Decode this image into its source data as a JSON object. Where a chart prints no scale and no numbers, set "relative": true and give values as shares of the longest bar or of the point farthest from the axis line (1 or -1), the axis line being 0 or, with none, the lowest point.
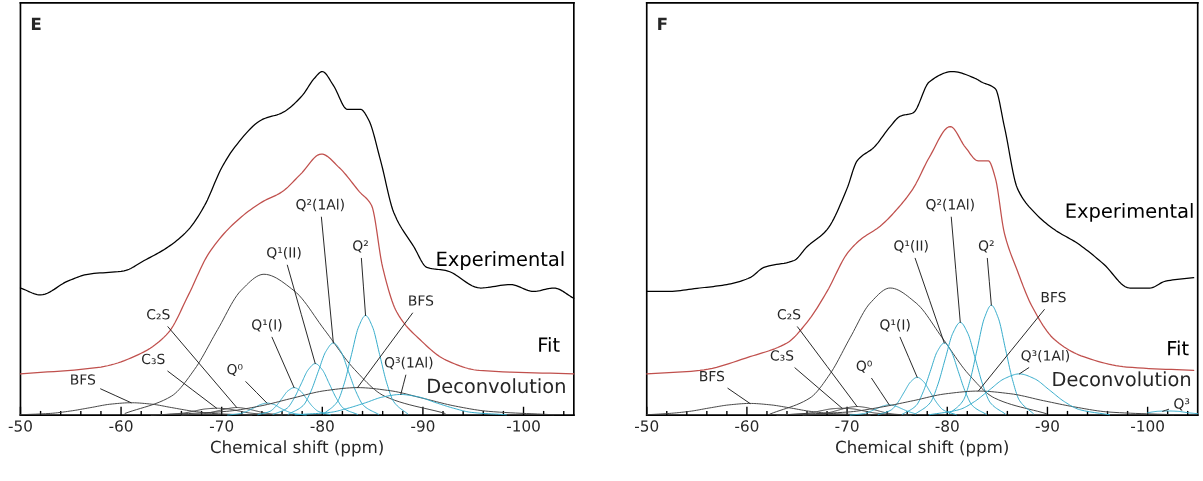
{
  "chart_data": [
    {
      "type": "line",
      "title": "E",
      "xlabel": "Chemical shift (ppm)",
      "relative": true,
      "xlim": [
        -50,
        -105
      ],
      "xticks": [
        -50,
        {
          "value": -52,
          "label": null
        },
        {
          "value": -54,
          "label": null
        },
        {
          "value": -56,
          "label": null
        },
        {
          "value": -58,
          "label": null
        },
        -60,
        {
          "value": -62,
          "label": null
        },
        {
          "value": -64,
          "label": null
        },
        {
          "value": -66,
          "label": null
        },
        {
          "value": -68,
          "label": null
        },
        -70,
        {
          "value": -72,
          "label": null
        },
        {
          "value": -74,
          "label": null
        },
        {
          "value": -76,
          "label": null
        },
        {
          "value": -78,
          "label": null
        },
        -80,
        {
          "value": -82,
          "label": null
        },
        {
          "value": -84,
          "label": null
        },
        {
          "value": -86,
          "label": null
        },
        {
          "value": -88,
          "label": null
        },
        -90,
        {
          "value": -92,
          "label": null
        },
        {
          "value": -94,
          "label": null
        },
        {
          "value": -96,
          "label": null
        },
        {
          "value": -98,
          "label": null
        },
        -100,
        {
          "value": -102,
          "label": null
        },
        {
          "value": -104,
          "label": null
        }
      ],
      "series": [
        {
          "name": "Experimental",
          "color": "#000000",
          "x": [
            -50,
            -52,
            -54.7,
            -56.7,
            -60.3,
            -62.3,
            -64.7,
            -66.7,
            -68.3,
            -70,
            -71.3,
            -74,
            -76,
            -78,
            -79.2,
            -80,
            -81.1,
            -82.5,
            -83.8,
            -84.6,
            -85.8,
            -87.1,
            -89.1,
            -90.4,
            -92.4,
            -95.7,
            -98.7,
            -101,
            -103,
            -105
          ],
          "values": [
            0.37,
            0.35,
            0.39,
            0.41,
            0.42,
            0.45,
            0.49,
            0.54,
            0.61,
            0.72,
            0.78,
            0.86,
            0.88,
            0.93,
            0.98,
            1.0,
            0.96,
            0.89,
            0.89,
            0.86,
            0.74,
            0.59,
            0.49,
            0.43,
            0.42,
            0.37,
            0.38,
            0.36,
            0.37,
            0.34
          ]
        },
        {
          "name": "Fit",
          "color": "#c0504d",
          "x": [
            -50,
            -58,
            -62,
            -64.7,
            -66.7,
            -68.7,
            -71.3,
            -74,
            -76,
            -77.8,
            -79.9,
            -81.7,
            -83.7,
            -84.9,
            -86,
            -87.4,
            -89.7,
            -92.3,
            -95.6,
            -105
          ],
          "values": [
            0.12,
            0.14,
            0.18,
            0.24,
            0.35,
            0.47,
            0.56,
            0.62,
            0.65,
            0.7,
            0.76,
            0.72,
            0.65,
            0.61,
            0.43,
            0.3,
            0.22,
            0.16,
            0.13,
            0.12
          ]
        },
        {
          "color": "#404040",
          "x": [
            -50,
            -53,
            -55,
            -57,
            -59,
            -61,
            -63,
            -65,
            -67,
            -69,
            -73
          ],
          "values": [
            0.001,
            0.005,
            0.012,
            0.022,
            0.032,
            0.036,
            0.032,
            0.022,
            0.012,
            0.005,
            0.0
          ]
        },
        {
          "color": "#404040",
          "x": [
            -63,
            -65,
            -66.2,
            -67.3,
            -68.4,
            -69.5,
            -70.6,
            -71.7,
            -72.8,
            -74,
            -76
          ],
          "values": [
            0.0,
            0.003,
            0.006,
            0.012,
            0.018,
            0.02,
            0.018,
            0.012,
            0.006,
            0.003,
            0.0
          ]
        },
        {
          "color": "#404040",
          "x": [
            -66,
            -67.9,
            -68.8,
            -69.7,
            -70.6,
            -71.5,
            -72.4,
            -73.3,
            -74.2,
            -75.1,
            -77
          ],
          "values": [
            0.0,
            0.003,
            0.007,
            0.013,
            0.019,
            0.022,
            0.019,
            0.013,
            0.007,
            0.003,
            0.0
          ]
        },
        {
          "color": "#404040",
          "x": [
            -60.4,
            -65,
            -67.3,
            -69.6,
            -71.9,
            -74.2,
            -77.2,
            -80.2,
            -83.2,
            -86.2,
            -92.2
          ],
          "values": [
            0.005,
            0.055,
            0.133,
            0.249,
            0.362,
            0.41,
            0.362,
            0.249,
            0.133,
            0.055,
            0.005
          ]
        },
        {
          "color": "#31a9c9",
          "x": [
            -70.6,
            -71.9,
            -72.5,
            -73.2,
            -73.9,
            -74.5,
            -75.2,
            -75.8,
            -76.5,
            -77.1,
            -78.4
          ],
          "values": [
            0.0,
            0.005,
            0.011,
            0.021,
            0.031,
            0.035,
            0.031,
            0.021,
            0.011,
            0.005,
            0.0
          ]
        },
        {
          "color": "#31a9c9",
          "x": [
            -73.6,
            -74.8,
            -75.4,
            -76,
            -76.6,
            -77.2,
            -77.8,
            -78.4,
            -79,
            -79.6,
            -80.8
          ],
          "values": [
            0.001,
            0.011,
            0.026,
            0.049,
            0.071,
            0.08,
            0.071,
            0.049,
            0.026,
            0.011,
            0.001
          ]
        },
        {
          "color": "#31a9c9",
          "x": [
            -75.1,
            -76.5,
            -77.2,
            -77.9,
            -78.6,
            -79.3,
            -80,
            -80.7,
            -81.4,
            -82.1,
            -83.5
          ],
          "values": [
            0.002,
            0.02,
            0.049,
            0.091,
            0.132,
            0.15,
            0.132,
            0.091,
            0.049,
            0.02,
            0.002
          ]
        },
        {
          "color": "#31a9c9",
          "x": [
            -76.6,
            -78.1,
            -78.85,
            -79.6,
            -80.35,
            -81.1,
            -81.85,
            -82.6,
            -83.35,
            -84.1,
            -85.6
          ],
          "values": [
            0.002,
            0.028,
            0.068,
            0.127,
            0.185,
            0.21,
            0.185,
            0.127,
            0.068,
            0.028,
            0.002
          ]
        },
        {
          "color": "#31a9c9",
          "x": [
            -80.1,
            -81.5,
            -82.2,
            -82.9,
            -83.6,
            -84.3,
            -85,
            -85.7,
            -86.4,
            -87.1,
            -88.5
          ],
          "values": [
            0.003,
            0.039,
            0.094,
            0.176,
            0.256,
            0.29,
            0.256,
            0.176,
            0.094,
            0.039,
            0.003
          ]
        },
        {
          "color": "#404040",
          "x": [
            -64,
            -70.5,
            -73.75,
            -77,
            -80.25,
            -83.5,
            -86.75,
            -90,
            -93.25,
            -96.5,
            -103
          ],
          "values": [
            0.001,
            0.011,
            0.026,
            0.049,
            0.071,
            0.08,
            0.071,
            0.049,
            0.026,
            0.011,
            0.001
          ]
        },
        {
          "color": "#31a9c9",
          "x": [
            -77.3,
            -80.8,
            -82.55,
            -84.3,
            -86.05,
            -87.8,
            -89.55,
            -91.3,
            -93.05,
            -94.8,
            -98.3
          ],
          "values": [
            0.001,
            0.008,
            0.02,
            0.036,
            0.053,
            0.06,
            0.053,
            0.036,
            0.02,
            0.008,
            0.001
          ]
        }
      ],
      "annotations": [
        {
          "text": "BFS",
          "x": -61,
          "y": 0.036
        },
        {
          "text": "C₃S",
          "x": -69.5,
          "y": 0.02
        },
        {
          "text": "C₂S",
          "x": -71.5,
          "y": 0.022
        },
        {
          "text": "Q⁰",
          "x": -74.5,
          "y": 0.035
        },
        {
          "text": "Q¹(I)",
          "x": -77.2,
          "y": 0.08
        },
        {
          "text": "Q¹(II)",
          "x": -79.3,
          "y": 0.15
        },
        {
          "text": "Q²(1Al)",
          "x": -81.1,
          "y": 0.21
        },
        {
          "text": "Q²",
          "x": -84.3,
          "y": 0.29
        },
        {
          "text": "BFS",
          "x": -83.5,
          "y": 0.08
        },
        {
          "text": "Q³(1Al)",
          "x": -87.8,
          "y": 0.06
        },
        "Deconvolution"
      ]
    },
    {
      "type": "line",
      "title": "F",
      "xlabel": "Chemical shift (ppm)",
      "relative": true,
      "xlim": [
        -50,
        -105
      ],
      "xticks": [
        -50,
        {
          "value": -52,
          "label": null
        },
        {
          "value": -54,
          "label": null
        },
        {
          "value": -56,
          "label": null
        },
        {
          "value": -58,
          "label": null
        },
        -60,
        {
          "value": -62,
          "label": null
        },
        {
          "value": -64,
          "label": null
        },
        {
          "value": -66,
          "label": null
        },
        {
          "value": -68,
          "label": null
        },
        -70,
        {
          "value": -72,
          "label": null
        },
        {
          "value": -74,
          "label": null
        },
        {
          "value": -76,
          "label": null
        },
        {
          "value": -78,
          "label": null
        },
        -80,
        {
          "value": -82,
          "label": null
        },
        {
          "value": -84,
          "label": null
        },
        {
          "value": -86,
          "label": null
        },
        {
          "value": -88,
          "label": null
        },
        -90,
        {
          "value": -92,
          "label": null
        },
        {
          "value": -94,
          "label": null
        },
        {
          "value": -96,
          "label": null
        },
        {
          "value": -98,
          "label": null
        },
        -100,
        {
          "value": -102,
          "label": null
        },
        {
          "value": -104,
          "label": null
        }
      ],
      "series": [
        {
          "name": "Experimental",
          "color": "#000000",
          "x": [
            -50,
            -52,
            -55.3,
            -58,
            -60.3,
            -61.7,
            -64.7,
            -66,
            -68,
            -70,
            -71,
            -72.7,
            -74.3,
            -75.3,
            -76.6,
            -78.2,
            -80.5,
            -82.8,
            -83.4,
            -84.8,
            -85.7,
            -87,
            -88.7,
            -90.7,
            -93,
            -95.6,
            -98.2,
            -100.2,
            -101.8,
            -104.6
          ],
          "values": [
            0.36,
            0.36,
            0.37,
            0.38,
            0.4,
            0.43,
            0.45,
            0.49,
            0.54,
            0.66,
            0.74,
            0.78,
            0.84,
            0.87,
            0.88,
            0.97,
            1.0,
            0.98,
            0.97,
            0.95,
            0.84,
            0.66,
            0.59,
            0.54,
            0.5,
            0.44,
            0.37,
            0.37,
            0.39,
            0.4
          ]
        },
        {
          "name": "Fit",
          "color": "#c0504d",
          "x": [
            -50,
            -55.3,
            -60.3,
            -64,
            -66,
            -68,
            -70,
            -71.3,
            -73.3,
            -75.3,
            -76.6,
            -78.2,
            -80.3,
            -81.8,
            -83.1,
            -84.1,
            -84.8,
            -85.7,
            -87,
            -88.4,
            -90.7,
            -93.6,
            -97.9,
            -104.6
          ],
          "values": [
            0.12,
            0.13,
            0.17,
            0.21,
            0.27,
            0.36,
            0.47,
            0.51,
            0.55,
            0.61,
            0.66,
            0.75,
            0.84,
            0.78,
            0.74,
            0.74,
            0.69,
            0.53,
            0.42,
            0.32,
            0.22,
            0.17,
            0.14,
            0.13
          ]
        },
        {
          "color": "#404040",
          "x": [
            -50,
            -52.3,
            -54.3,
            -56.3,
            -58.3,
            -60.3,
            -62.3,
            -64.3,
            -66.3,
            -68.3,
            -72.3
          ],
          "values": [
            0.001,
            0.005,
            0.011,
            0.021,
            0.03,
            0.034,
            0.03,
            0.021,
            0.011,
            0.005,
            0.0
          ]
        },
        {
          "color": "#404040",
          "x": [
            -63,
            -65,
            -66.2,
            -67.3,
            -68.4,
            -69.5,
            -70.6,
            -71.7,
            -72.8,
            -74,
            -76
          ],
          "values": [
            0.0,
            0.003,
            0.006,
            0.012,
            0.018,
            0.02,
            0.018,
            0.012,
            0.006,
            0.003,
            0.0
          ]
        },
        {
          "color": "#404040",
          "x": [
            -65.6,
            -67.4,
            -68.3,
            -69.2,
            -70.1,
            -71,
            -71.9,
            -72.8,
            -73.7,
            -74.6,
            -76.4
          ],
          "values": [
            0.0,
            0.003,
            0.008,
            0.015,
            0.022,
            0.025,
            0.022,
            0.015,
            0.008,
            0.003,
            0.0
          ]
        },
        {
          "color": "#404040",
          "x": [
            -62.3,
            -66.3,
            -68.3,
            -70.3,
            -72.3,
            -74.3,
            -76.9,
            -79.5,
            -82.1,
            -84.7,
            -89.9
          ],
          "values": [
            0.003,
            0.05,
            0.12,
            0.225,
            0.326,
            0.37,
            0.326,
            0.225,
            0.12,
            0.05,
            0.004
          ]
        },
        {
          "color": "#31a9c9",
          "x": [
            -70.3,
            -71.6,
            -72.25,
            -72.9,
            -73.55,
            -74.2,
            -74.85,
            -75.5,
            -76.15,
            -76.8
          ],
          "values": [
            0.0,
            0.004,
            0.01,
            0.018,
            0.026,
            0.03,
            0.026,
            0.018,
            0.01,
            0.004
          ]
        },
        {
          "color": "#31a9c9",
          "x": [
            -73.1,
            -74.4,
            -75.05,
            -75.7,
            -76.35,
            -77,
            -77.65,
            -78.3,
            -78.95,
            -79.6,
            -80.9
          ],
          "values": [
            0.001,
            0.015,
            0.036,
            0.067,
            0.097,
            0.11,
            0.097,
            0.067,
            0.036,
            0.015,
            0.001
          ]
        },
        {
          "color": "#31a9c9",
          "x": [
            -75.5,
            -76.9,
            -77.6,
            -78.3,
            -79,
            -79.7,
            -80.4,
            -81.1,
            -81.8,
            -82.5,
            -83.9
          ],
          "values": [
            0.002,
            0.028,
            0.068,
            0.127,
            0.185,
            0.21,
            0.185,
            0.127,
            0.068,
            0.028,
            0.002
          ]
        },
        {
          "color": "#31a9c9",
          "x": [
            -76.8,
            -78.3,
            -79.05,
            -79.8,
            -80.55,
            -81.3,
            -82.05,
            -82.8,
            -83.55,
            -84.3,
            -85.8
          ],
          "values": [
            0.003,
            0.036,
            0.088,
            0.164,
            0.238,
            0.27,
            0.238,
            0.164,
            0.088,
            0.036,
            0.003
          ]
        },
        {
          "color": "#31a9c9",
          "x": [
            -80.2,
            -81.6,
            -82.3,
            -83,
            -83.7,
            -84.4,
            -85.1,
            -85.8,
            -86.5,
            -87.2,
            -88.6
          ],
          "values": [
            0.004,
            0.043,
            0.104,
            0.194,
            0.282,
            0.32,
            0.282,
            0.194,
            0.104,
            0.043,
            0.004
          ]
        },
        {
          "color": "#404040",
          "x": [
            -63.6,
            -70.1,
            -73.35,
            -76.6,
            -79.85,
            -83.1,
            -86.35,
            -89.6,
            -92.85,
            -96.1,
            -102.6
          ],
          "values": [
            0.001,
            0.009,
            0.023,
            0.042,
            0.062,
            0.07,
            0.062,
            0.042,
            0.023,
            0.009,
            0.001
          ]
        },
        {
          "color": "#31a9c9",
          "x": [
            -78.2,
            -81.2,
            -82.7,
            -84.2,
            -85.7,
            -87.2,
            -88.7,
            -90.2,
            -91.7,
            -93.2,
            -96.2
          ],
          "values": [
            0.001,
            0.016,
            0.039,
            0.073,
            0.106,
            0.12,
            0.106,
            0.073,
            0.039,
            0.016,
            0.001
          ]
        },
        {
          "color": "#31a9c9",
          "x": [
            -100,
            -101,
            -102,
            -103,
            -104,
            -105
          ],
          "values": [
            0.007,
            0.011,
            0.012,
            0.011,
            0.007,
            0.004
          ]
        }
      ],
      "annotations": [
        {
          "text": "BFS",
          "x": -60.3,
          "y": 0.034
        },
        {
          "text": "C₃S",
          "x": -69.5,
          "y": 0.02
        },
        {
          "text": "C₂S",
          "x": -71,
          "y": 0.025
        },
        {
          "text": "Q⁰",
          "x": -74.2,
          "y": 0.03
        },
        {
          "text": "Q¹(I)",
          "x": -77,
          "y": 0.11
        },
        {
          "text": "Q¹(II)",
          "x": -79.7,
          "y": 0.21
        },
        {
          "text": "Q²(1Al)",
          "x": -81.3,
          "y": 0.27
        },
        {
          "text": "Q²",
          "x": -84.4,
          "y": 0.32
        },
        {
          "text": "BFS",
          "x": -83.1,
          "y": 0.07
        },
        {
          "text": "Q³(1Al)",
          "x": -87.2,
          "y": 0.12
        },
        {
          "text": "Q³",
          "x": -101.5,
          "y": 0.011
        },
        "Deconvolution"
      ]
    }
  ]
}
